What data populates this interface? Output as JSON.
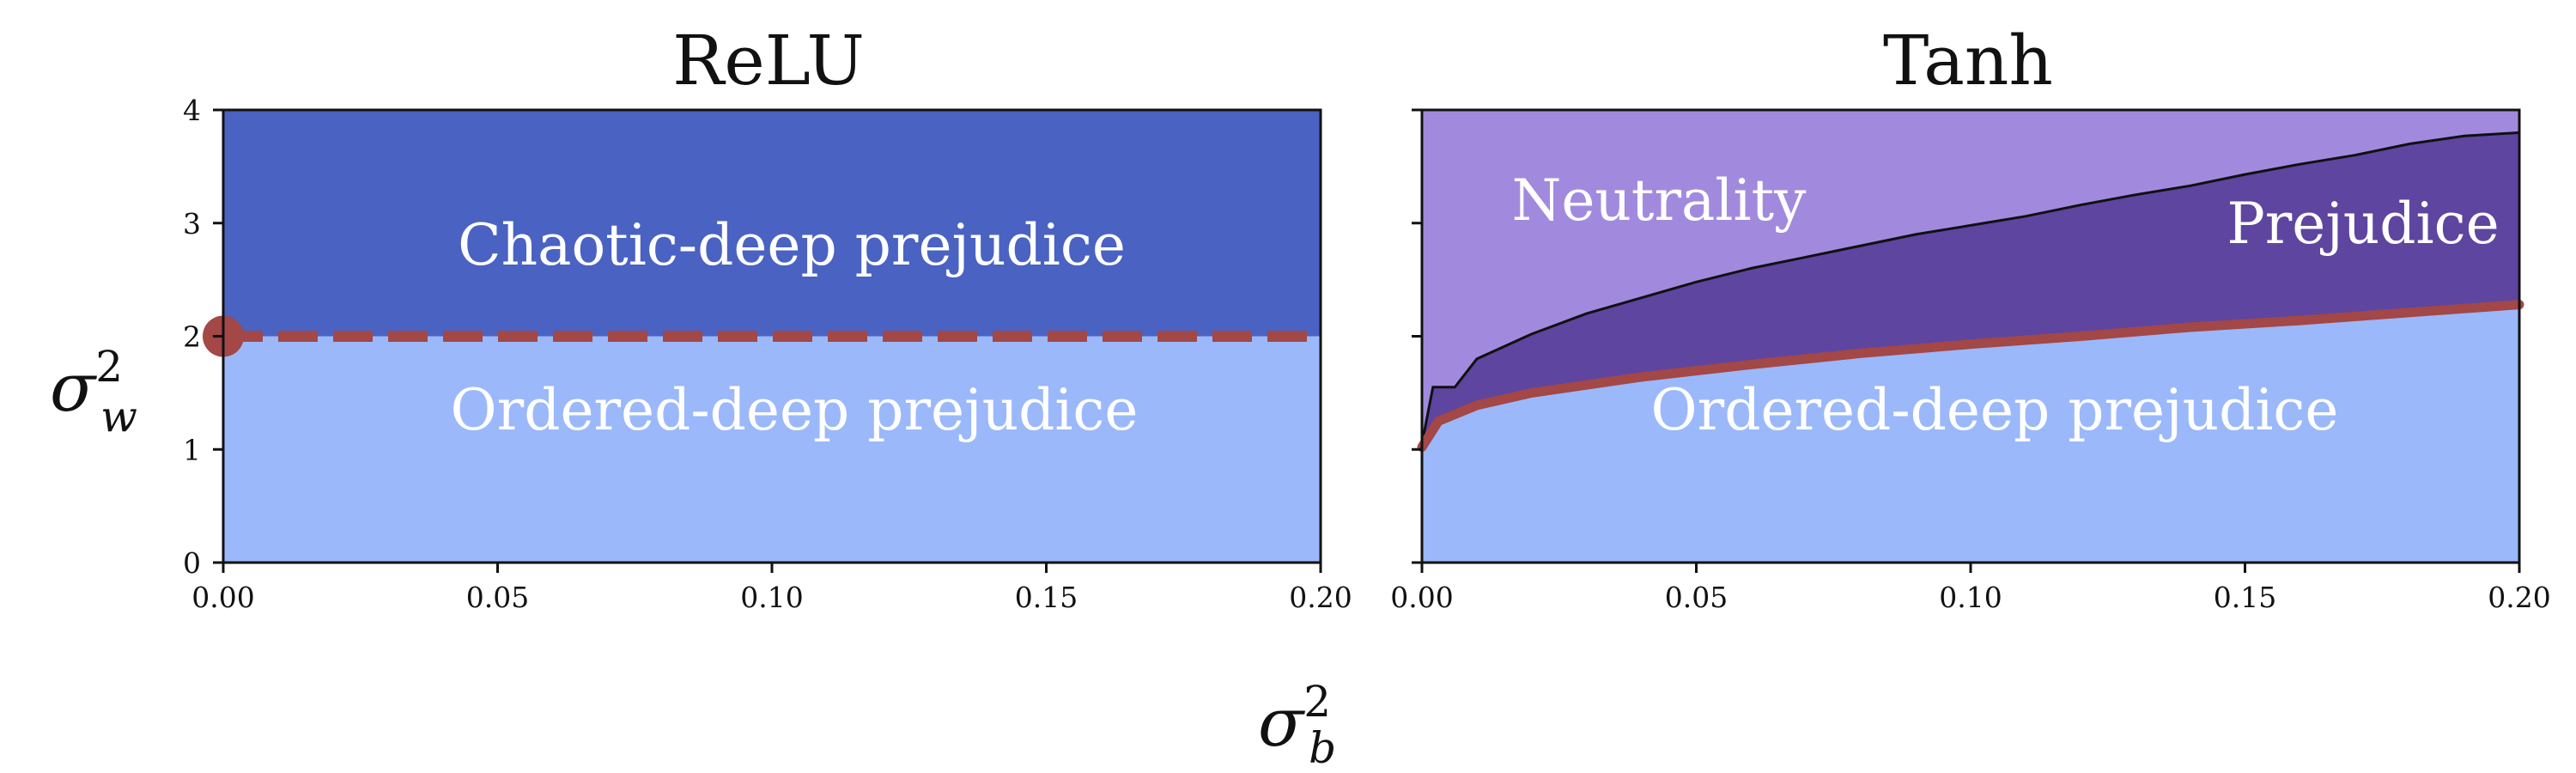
{
  "chart_data": [
    {
      "type": "area",
      "title": "ReLU",
      "xlim": [
        0,
        0.2
      ],
      "ylim": [
        0,
        4
      ],
      "xticks": [
        "0.00",
        "0.05",
        "0.10",
        "0.15",
        "0.20"
      ],
      "yticks": [
        "0",
        "1",
        "2",
        "3",
        "4"
      ],
      "grid": false,
      "regions": [
        {
          "name": "Chaotic-deep prejudice",
          "color": "#4a62c2",
          "y_range": [
            2,
            4
          ]
        },
        {
          "name": "Ordered-deep prejudice",
          "color": "#9bb8fb",
          "y_range": [
            0,
            2
          ]
        }
      ],
      "boundary": {
        "style": "dashed",
        "color": "#a34747",
        "x": [
          0,
          0.2
        ],
        "y": [
          2,
          2
        ]
      },
      "marker": {
        "x": 0,
        "y": 2,
        "color": "#a34747"
      }
    },
    {
      "type": "area",
      "title": "Tanh",
      "xlim": [
        0,
        0.2
      ],
      "ylim": [
        0,
        4
      ],
      "xticks": [
        "0.00",
        "0.05",
        "0.10",
        "0.15",
        "0.20"
      ],
      "grid": false,
      "regions": [
        {
          "name": "Neutrality",
          "color": "#a18ade"
        },
        {
          "name": "Prejudice",
          "color": "#5e45a0"
        },
        {
          "name": "Ordered-deep prejudice",
          "color": "#9bb8fb"
        }
      ],
      "upper_boundary": {
        "color": "#111111",
        "x": [
          0,
          0.002,
          0.006,
          0.01,
          0.02,
          0.03,
          0.04,
          0.05,
          0.06,
          0.07,
          0.08,
          0.09,
          0.1,
          0.11,
          0.12,
          0.13,
          0.14,
          0.15,
          0.16,
          0.17,
          0.18,
          0.19,
          0.2
        ],
        "y": [
          1.05,
          1.55,
          1.55,
          1.8,
          2.02,
          2.2,
          2.34,
          2.48,
          2.6,
          2.7,
          2.8,
          2.9,
          2.98,
          3.06,
          3.16,
          3.25,
          3.33,
          3.43,
          3.52,
          3.6,
          3.7,
          3.77,
          3.8
        ]
      },
      "lower_boundary": {
        "color": "#a34747",
        "x": [
          0,
          0.003,
          0.01,
          0.02,
          0.04,
          0.06,
          0.08,
          0.1,
          0.12,
          0.14,
          0.16,
          0.18,
          0.2
        ],
        "y": [
          1.02,
          1.25,
          1.39,
          1.5,
          1.64,
          1.75,
          1.85,
          1.93,
          2.0,
          2.08,
          2.14,
          2.21,
          2.28
        ]
      }
    }
  ],
  "labels": {
    "ylabel_main": "σ",
    "ylabel_sup": "2",
    "ylabel_sub": "w",
    "xlabel_main": "σ",
    "xlabel_sup": "2",
    "xlabel_sub": "b"
  },
  "colors": {
    "boundary_red": "#a34747",
    "axis": "#111111"
  }
}
